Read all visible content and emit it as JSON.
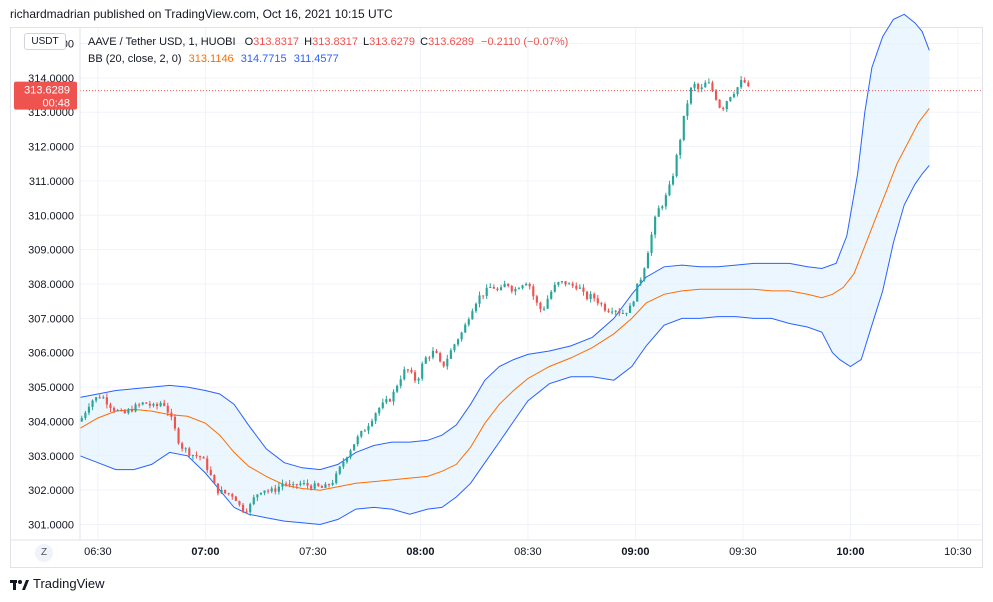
{
  "publisher_line": "richardmadrian published on TradingView.com, Oct 16, 2021 10:15 UTC",
  "symbol_badge": "USDT",
  "legend": {
    "symbol": "AAVE / Tether USD, 1, HUOBI",
    "o_label": "O",
    "o_value": "313.8317",
    "h_label": "H",
    "h_value": "313.8317",
    "l_label": "L",
    "l_value": "313.6279",
    "c_label": "C",
    "c_value": "313.6289",
    "change": "−0.2110 (−0.07%)",
    "bb_label": "BB (20, close, 2, 0)",
    "bb_basis": "313.1146",
    "bb_upper": "314.7715",
    "bb_lower": "311.4577"
  },
  "price_tag": {
    "price": "313.6289",
    "countdown": "00:48"
  },
  "zoom_button": "Z",
  "footer": {
    "brand": "TradingView"
  },
  "colors": {
    "up": "#26a69a",
    "down": "#ef5350",
    "basis": "#ff6d00",
    "band": "#2962ff",
    "band_fill": "#e3f2fd",
    "grid": "#f0f3fa",
    "text": "#131722"
  },
  "chart_data": {
    "type": "candlestick",
    "title": "AAVE / Tether USD, 1, HUOBI",
    "y_tick_labels": [
      "315.0000",
      "314.0000",
      "313.0000",
      "312.0000",
      "311.0000",
      "310.0000",
      "309.0000",
      "308.0000",
      "307.0000",
      "306.0000",
      "305.0000",
      "304.0000",
      "303.0000",
      "302.0000",
      "301.0000"
    ],
    "y_ticks": [
      315,
      314,
      313,
      312,
      311,
      310,
      309,
      308,
      307,
      306,
      305,
      304,
      303,
      302,
      301
    ],
    "ylim": [
      300.55,
      315.45
    ],
    "x_range_minutes": [
      385,
      637
    ],
    "x_ticks": [
      {
        "label": "06:30",
        "t": 390,
        "bold": false
      },
      {
        "label": "07:00",
        "t": 420,
        "bold": true
      },
      {
        "label": "07:30",
        "t": 450,
        "bold": false
      },
      {
        "label": "08:00",
        "t": 480,
        "bold": true
      },
      {
        "label": "08:30",
        "t": 510,
        "bold": false
      },
      {
        "label": "09:00",
        "t": 540,
        "bold": true
      },
      {
        "label": "09:30",
        "t": 570,
        "bold": false
      },
      {
        "label": "10:00",
        "t": 600,
        "bold": true
      },
      {
        "label": "10:30",
        "t": 630,
        "bold": false
      }
    ],
    "last_price": 313.6289,
    "bb_upper_points": [
      [
        385,
        304.7
      ],
      [
        390,
        304.8
      ],
      [
        395,
        304.9
      ],
      [
        400,
        304.95
      ],
      [
        405,
        305.0
      ],
      [
        410,
        305.05
      ],
      [
        415,
        305.0
      ],
      [
        420,
        304.9
      ],
      [
        424,
        304.8
      ],
      [
        428,
        304.5
      ],
      [
        432,
        303.9
      ],
      [
        437,
        303.2
      ],
      [
        442,
        302.8
      ],
      [
        447,
        302.65
      ],
      [
        452,
        302.6
      ],
      [
        457,
        302.75
      ],
      [
        462,
        303.1
      ],
      [
        467,
        303.3
      ],
      [
        472,
        303.4
      ],
      [
        477,
        303.4
      ],
      [
        482,
        303.45
      ],
      [
        486,
        303.6
      ],
      [
        490,
        303.9
      ],
      [
        494,
        304.5
      ],
      [
        498,
        305.2
      ],
      [
        502,
        305.6
      ],
      [
        506,
        305.8
      ],
      [
        510,
        305.95
      ],
      [
        516,
        306.05
      ],
      [
        522,
        306.2
      ],
      [
        528,
        306.45
      ],
      [
        534,
        307.0
      ],
      [
        539,
        307.7
      ],
      [
        543,
        308.2
      ],
      [
        548,
        308.5
      ],
      [
        553,
        308.55
      ],
      [
        558,
        308.5
      ],
      [
        563,
        308.5
      ],
      [
        568,
        308.55
      ],
      [
        573,
        308.6
      ],
      [
        578,
        308.6
      ],
      [
        583,
        308.6
      ],
      [
        588,
        308.5
      ],
      [
        592,
        308.45
      ],
      [
        596,
        308.6
      ],
      [
        599,
        309.4
      ],
      [
        602,
        311.2
      ],
      [
        604,
        313.0
      ],
      [
        606,
        314.3
      ],
      [
        609,
        315.2
      ],
      [
        612,
        315.7
      ],
      [
        615,
        315.85
      ],
      [
        618,
        315.6
      ],
      [
        620,
        315.35
      ],
      [
        622,
        314.8
      ]
    ],
    "bb_lower_points": [
      [
        385,
        303.0
      ],
      [
        390,
        302.8
      ],
      [
        395,
        302.6
      ],
      [
        400,
        302.6
      ],
      [
        405,
        302.75
      ],
      [
        410,
        303.1
      ],
      [
        415,
        303.0
      ],
      [
        420,
        302.5
      ],
      [
        424,
        302.0
      ],
      [
        428,
        301.5
      ],
      [
        432,
        301.3
      ],
      [
        437,
        301.2
      ],
      [
        442,
        301.1
      ],
      [
        447,
        301.05
      ],
      [
        452,
        301.0
      ],
      [
        457,
        301.15
      ],
      [
        462,
        301.45
      ],
      [
        467,
        301.5
      ],
      [
        472,
        301.45
      ],
      [
        477,
        301.3
      ],
      [
        482,
        301.45
      ],
      [
        486,
        301.5
      ],
      [
        490,
        301.8
      ],
      [
        494,
        302.2
      ],
      [
        498,
        302.8
      ],
      [
        502,
        303.4
      ],
      [
        506,
        304.0
      ],
      [
        510,
        304.6
      ],
      [
        516,
        305.1
      ],
      [
        522,
        305.3
      ],
      [
        528,
        305.3
      ],
      [
        534,
        305.2
      ],
      [
        539,
        305.6
      ],
      [
        543,
        306.2
      ],
      [
        548,
        306.8
      ],
      [
        553,
        307.0
      ],
      [
        558,
        307.0
      ],
      [
        563,
        307.05
      ],
      [
        568,
        307.05
      ],
      [
        573,
        307.0
      ],
      [
        578,
        307.0
      ],
      [
        583,
        306.85
      ],
      [
        588,
        306.75
      ],
      [
        592,
        306.6
      ],
      [
        595,
        306.0
      ],
      [
        597,
        305.8
      ],
      [
        600,
        305.6
      ],
      [
        603,
        305.8
      ],
      [
        606,
        306.8
      ],
      [
        609,
        307.8
      ],
      [
        612,
        309.2
      ],
      [
        615,
        310.3
      ],
      [
        618,
        310.9
      ],
      [
        620,
        311.2
      ],
      [
        622,
        311.45
      ]
    ],
    "bb_basis_points": [
      [
        385,
        303.8
      ],
      [
        390,
        304.1
      ],
      [
        395,
        304.3
      ],
      [
        400,
        304.35
      ],
      [
        405,
        304.3
      ],
      [
        410,
        304.2
      ],
      [
        415,
        304.15
      ],
      [
        420,
        303.95
      ],
      [
        424,
        303.6
      ],
      [
        428,
        303.1
      ],
      [
        432,
        302.7
      ],
      [
        437,
        302.4
      ],
      [
        442,
        302.15
      ],
      [
        447,
        302.05
      ],
      [
        452,
        302.0
      ],
      [
        457,
        302.1
      ],
      [
        462,
        302.2
      ],
      [
        467,
        302.25
      ],
      [
        472,
        302.3
      ],
      [
        477,
        302.35
      ],
      [
        482,
        302.4
      ],
      [
        486,
        302.55
      ],
      [
        490,
        302.75
      ],
      [
        494,
        303.25
      ],
      [
        498,
        303.95
      ],
      [
        502,
        304.5
      ],
      [
        506,
        304.9
      ],
      [
        510,
        305.25
      ],
      [
        516,
        305.6
      ],
      [
        522,
        305.85
      ],
      [
        528,
        306.15
      ],
      [
        534,
        306.55
      ],
      [
        539,
        307.0
      ],
      [
        543,
        307.45
      ],
      [
        548,
        307.7
      ],
      [
        553,
        307.8
      ],
      [
        558,
        307.85
      ],
      [
        563,
        307.85
      ],
      [
        568,
        307.85
      ],
      [
        573,
        307.85
      ],
      [
        578,
        307.8
      ],
      [
        583,
        307.8
      ],
      [
        588,
        307.7
      ],
      [
        592,
        307.6
      ],
      [
        595,
        307.7
      ],
      [
        598,
        307.9
      ],
      [
        601,
        308.3
      ],
      [
        604,
        309.1
      ],
      [
        607,
        309.9
      ],
      [
        610,
        310.7
      ],
      [
        613,
        311.5
      ],
      [
        616,
        312.1
      ],
      [
        619,
        312.7
      ],
      [
        622,
        313.11
      ]
    ],
    "trend_keys": [
      [
        385,
        304.0
      ],
      [
        388,
        304.6
      ],
      [
        391,
        304.75
      ],
      [
        394,
        304.4
      ],
      [
        397,
        304.2
      ],
      [
        400,
        304.4
      ],
      [
        403,
        304.55
      ],
      [
        406,
        304.4
      ],
      [
        408,
        304.6
      ],
      [
        410,
        304.2
      ],
      [
        413,
        303.3
      ],
      [
        416,
        303.05
      ],
      [
        419,
        302.95
      ],
      [
        421,
        302.55
      ],
      [
        423,
        302.0
      ],
      [
        426,
        301.9
      ],
      [
        428,
        301.85
      ],
      [
        430,
        301.45
      ],
      [
        432,
        301.45
      ],
      [
        434,
        301.85
      ],
      [
        436,
        302.05
      ],
      [
        438,
        301.95
      ],
      [
        440,
        302.05
      ],
      [
        442,
        302.25
      ],
      [
        444,
        302.05
      ],
      [
        446,
        302.2
      ],
      [
        448,
        302.15
      ],
      [
        451,
        302.1
      ],
      [
        453,
        302.05
      ],
      [
        456,
        302.3
      ],
      [
        459,
        302.95
      ],
      [
        462,
        303.45
      ],
      [
        465,
        303.85
      ],
      [
        468,
        304.35
      ],
      [
        472,
        304.7
      ],
      [
        474,
        305.2
      ],
      [
        476,
        305.55
      ],
      [
        479,
        305.15
      ],
      [
        481,
        305.8
      ],
      [
        484,
        306.05
      ],
      [
        486,
        305.55
      ],
      [
        488,
        305.95
      ],
      [
        490,
        306.35
      ],
      [
        492,
        306.65
      ],
      [
        494,
        307.2
      ],
      [
        496,
        307.6
      ],
      [
        498,
        307.75
      ],
      [
        500,
        307.95
      ],
      [
        502,
        307.75
      ],
      [
        504,
        308.05
      ],
      [
        506,
        307.8
      ],
      [
        508,
        308.0
      ],
      [
        510,
        308.1
      ],
      [
        512,
        307.5
      ],
      [
        514,
        307.2
      ],
      [
        516,
        307.7
      ],
      [
        518,
        308.0
      ],
      [
        520,
        308.05
      ],
      [
        522,
        307.95
      ],
      [
        524,
        307.95
      ],
      [
        526,
        307.6
      ],
      [
        528,
        307.65
      ],
      [
        530,
        307.45
      ],
      [
        532,
        307.25
      ],
      [
        534,
        307.3
      ],
      [
        536,
        307.15
      ],
      [
        538,
        307.25
      ],
      [
        539,
        307.35
      ],
      [
        540,
        307.8
      ],
      [
        542,
        308.3
      ],
      [
        544,
        309.2
      ],
      [
        546,
        310.1
      ],
      [
        548,
        310.4
      ],
      [
        550,
        310.95
      ],
      [
        552,
        311.95
      ],
      [
        554,
        313.1
      ],
      [
        556,
        313.85
      ],
      [
        558,
        313.6
      ],
      [
        560,
        313.9
      ],
      [
        562,
        313.55
      ],
      [
        564,
        313.05
      ],
      [
        566,
        313.45
      ],
      [
        568,
        313.65
      ],
      [
        570,
        313.95
      ],
      [
        572,
        313.6
      ]
    ]
  }
}
